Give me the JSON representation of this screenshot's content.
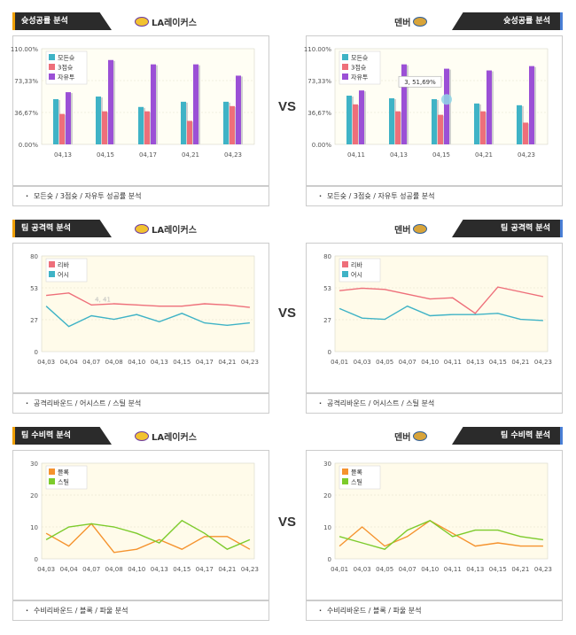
{
  "vs_label": "VS",
  "panels": [
    {
      "tab_title": "슛성공률 분석",
      "team": "LA레이커스",
      "logo": "lal",
      "side": "left",
      "footer": "모든슛 / 3점슛 / 자유투 성공률 분석",
      "chart_data": {
        "type": "bar",
        "categories": [
          "04,13",
          "04,15",
          "04,17",
          "04,21",
          "04,23"
        ],
        "series": [
          {
            "name": "모든슛",
            "color": "#3fb3c6",
            "values": [
              52,
              55,
              43,
              49,
              49
            ]
          },
          {
            "name": "3점슛",
            "color": "#ee6f7a",
            "values": [
              35,
              38,
              38,
              27,
              44
            ]
          },
          {
            "name": "자유투",
            "color": "#9b50d6",
            "values": [
              60,
              97,
              92,
              92,
              79
            ]
          }
        ],
        "yticks": [
          "0.00%",
          "36,67%",
          "73,33%",
          "110.00%"
        ],
        "ylim": [
          0,
          110
        ]
      }
    },
    {
      "tab_title": "슛성공률 분석",
      "team": "덴버",
      "logo": "den",
      "side": "right",
      "footer": "모든슛 / 3점슛 / 자유투 성공률 분석",
      "chart_data": {
        "type": "bar",
        "categories": [
          "04,11",
          "04,13",
          "04,15",
          "04,21",
          "04,23"
        ],
        "series": [
          {
            "name": "모든슛",
            "color": "#3fb3c6",
            "values": [
              56,
              53,
              52,
              47,
              45
            ]
          },
          {
            "name": "3점슛",
            "color": "#ee6f7a",
            "values": [
              46,
              38,
              34,
              38,
              25
            ]
          },
          {
            "name": "자유투",
            "color": "#9b50d6",
            "values": [
              62,
              92,
              87,
              85,
              90
            ]
          }
        ],
        "yticks": [
          "0.00%",
          "36,67%",
          "73,33%",
          "110.00%"
        ],
        "ylim": [
          0,
          110
        ],
        "tooltip": "3, 51,69%"
      }
    },
    {
      "tab_title": "팀 공격력 분석",
      "team": "LA레이커스",
      "logo": "lal",
      "side": "left",
      "footer": "공격리바운드 / 어시스트 / 스틸 분석",
      "chart_data": {
        "type": "line",
        "categories": [
          "04,03",
          "04,04",
          "04,07",
          "04,08",
          "04,10",
          "04,13",
          "04,15",
          "04,17",
          "04,21",
          "04,23"
        ],
        "series": [
          {
            "name": "리바",
            "color": "#ee6f7a",
            "values": [
              47,
              49,
              39,
              40,
              39,
              38,
              38,
              40,
              39,
              37
            ]
          },
          {
            "name": "어시",
            "color": "#3fb3c6",
            "values": [
              38,
              21,
              30,
              27,
              31,
              25,
              32,
              24,
              22,
              24
            ]
          }
        ],
        "yticks": [
          "0",
          "27",
          "53",
          "80"
        ],
        "ylim": [
          0,
          80
        ],
        "annotation": "4, 41"
      }
    },
    {
      "tab_title": "팀 공격력 분석",
      "team": "덴버",
      "logo": "den",
      "side": "right",
      "footer": "공격리바운드 / 어시스트 / 스틸 분석",
      "chart_data": {
        "type": "line",
        "categories": [
          "04,01",
          "04,03",
          "04,05",
          "04,07",
          "04,10",
          "04,11",
          "04,13",
          "04,15",
          "04,21",
          "04,23"
        ],
        "series": [
          {
            "name": "리바",
            "color": "#ee6f7a",
            "values": [
              51,
              53,
              52,
              48,
              44,
              45,
              32,
              54,
              50,
              46
            ]
          },
          {
            "name": "어시",
            "color": "#3fb3c6",
            "values": [
              36,
              28,
              27,
              38,
              30,
              31,
              31,
              32,
              27,
              26
            ]
          }
        ],
        "yticks": [
          "0",
          "27",
          "53",
          "80"
        ],
        "ylim": [
          0,
          80
        ]
      }
    },
    {
      "tab_title": "팀 수비력 분석",
      "team": "LA레이커스",
      "logo": "lal",
      "side": "left",
      "footer": "수비리바운드 / 블록 / 파울 분석",
      "chart_data": {
        "type": "line",
        "categories": [
          "04,03",
          "04,04",
          "04,07",
          "04,08",
          "04,10",
          "04,13",
          "04,15",
          "04,17",
          "04,21",
          "04,23"
        ],
        "series": [
          {
            "name": "블록",
            "color": "#f5932e",
            "values": [
              8,
              4,
              11,
              2,
              3,
              6,
              3,
              7,
              7,
              3
            ]
          },
          {
            "name": "스틸",
            "color": "#7dcb2c",
            "values": [
              6,
              10,
              11,
              10,
              8,
              5,
              12,
              8,
              3,
              6
            ]
          }
        ],
        "yticks": [
          "0",
          "10",
          "20",
          "30"
        ],
        "ylim": [
          0,
          30
        ]
      }
    },
    {
      "tab_title": "팀 수비력 분석",
      "team": "덴버",
      "logo": "den",
      "side": "right",
      "footer": "수비리바운드 / 블록 / 파울 분석",
      "chart_data": {
        "type": "line",
        "categories": [
          "04,01",
          "04,03",
          "04,05",
          "04,07",
          "04,10",
          "04,11",
          "04,13",
          "04,15",
          "04,21",
          "04,23"
        ],
        "series": [
          {
            "name": "블록",
            "color": "#f5932e",
            "values": [
              4,
              10,
              4,
              7,
              12,
              8,
              4,
              5,
              4,
              4
            ]
          },
          {
            "name": "스틸",
            "color": "#7dcb2c",
            "values": [
              7,
              5,
              3,
              9,
              12,
              7,
              9,
              9,
              7,
              6
            ]
          }
        ],
        "yticks": [
          "0",
          "10",
          "20",
          "30"
        ],
        "ylim": [
          0,
          30
        ]
      }
    }
  ]
}
